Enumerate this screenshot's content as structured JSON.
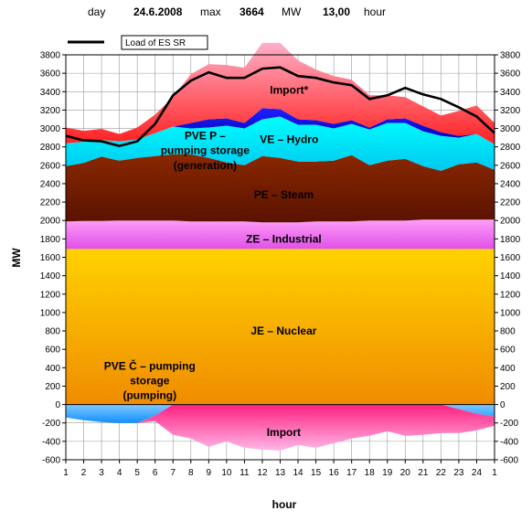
{
  "header": {
    "day_label": "day",
    "date": "24.6.2008",
    "max_label": "max",
    "max_value": "3664",
    "unit": "MW",
    "time": "13,00",
    "hour_label": "hour"
  },
  "chart_data": {
    "type": "area",
    "title": "",
    "xlabel": "hour",
    "ylabel": "MW",
    "ylim": [
      -600,
      3800
    ],
    "ytick_step": 200,
    "x": [
      1,
      2,
      3,
      4,
      5,
      6,
      7,
      8,
      9,
      10,
      11,
      12,
      13,
      14,
      15,
      16,
      17,
      18,
      19,
      20,
      21,
      22,
      23,
      24,
      25
    ],
    "x_tick_labels": [
      "1",
      "2",
      "3",
      "4",
      "5",
      "6",
      "7",
      "8",
      "9",
      "10",
      "11",
      "12",
      "13",
      "14",
      "15",
      "16",
      "17",
      "18",
      "19",
      "20",
      "21",
      "22",
      "23",
      "24",
      "1"
    ],
    "grid": true,
    "legend": {
      "position": "top-left",
      "entries": [
        "Load of ES SR"
      ]
    },
    "layers_positive": [
      {
        "name": "JE – Nuclear",
        "color_top": "#ffd200",
        "color_bottom": "#f08c00",
        "values": [
          1690,
          1690,
          1690,
          1690,
          1690,
          1690,
          1690,
          1690,
          1690,
          1690,
          1690,
          1690,
          1690,
          1690,
          1690,
          1690,
          1690,
          1690,
          1690,
          1690,
          1690,
          1690,
          1690,
          1690,
          1690
        ]
      },
      {
        "name": "ZE – Industrial",
        "color_top": "#ff9ef8",
        "color_bottom": "#e050e8",
        "values": [
          300,
          305,
          305,
          310,
          310,
          310,
          310,
          300,
          300,
          300,
          300,
          290,
          290,
          290,
          300,
          300,
          300,
          310,
          310,
          310,
          320,
          320,
          320,
          320,
          320
        ]
      },
      {
        "name": "PE – Steam",
        "color_top": "#8a2800",
        "color_bottom": "#5a1200",
        "values": [
          600,
          630,
          700,
          650,
          680,
          700,
          720,
          730,
          690,
          640,
          610,
          720,
          700,
          660,
          650,
          660,
          720,
          600,
          650,
          670,
          580,
          530,
          600,
          620,
          540
        ]
      },
      {
        "name": "VE – Hydro",
        "color_top": "#00ffff",
        "color_bottom": "#00c8f0",
        "values": [
          250,
          230,
          180,
          210,
          200,
          250,
          300,
          280,
          330,
          400,
          400,
          400,
          450,
          400,
          400,
          350,
          340,
          390,
          410,
          390,
          380,
          380,
          290,
          310,
          280
        ]
      },
      {
        "name": "PVE P – pumping storage (generation)",
        "color_top": "#2020ff",
        "color_bottom": "#0000b0",
        "values": [
          0,
          0,
          0,
          0,
          0,
          0,
          0,
          60,
          90,
          80,
          60,
          120,
          80,
          60,
          50,
          50,
          40,
          20,
          40,
          50,
          60,
          40,
          20,
          0,
          0
        ]
      },
      {
        "name": "Import*",
        "color_top": "#ffb0c8",
        "color_bottom": "#ff2020",
        "values": [
          170,
          120,
          120,
          80,
          130,
          200,
          320,
          530,
          600,
          580,
          600,
          710,
          720,
          640,
          550,
          520,
          440,
          350,
          260,
          230,
          210,
          180,
          270,
          310,
          230
        ]
      }
    ],
    "layers_negative": [
      {
        "name": "PVE Č – pumping storage (pumping)",
        "color_top": "#80c8ff",
        "color_bottom": "#1090ff",
        "values": [
          -140,
          -170,
          -190,
          -200,
          -200,
          -120,
          0,
          0,
          0,
          0,
          0,
          0,
          0,
          0,
          0,
          0,
          0,
          0,
          0,
          0,
          0,
          0,
          -50,
          -100,
          -130
        ]
      },
      {
        "name": "Import",
        "color_top": "#ff2080",
        "color_bottom": "#ffb8e8",
        "values": [
          0,
          0,
          0,
          0,
          0,
          -60,
          -330,
          -370,
          -460,
          -400,
          -470,
          -490,
          -500,
          -440,
          -470,
          -420,
          -370,
          -340,
          -290,
          -340,
          -330,
          -310,
          -260,
          -180,
          -100
        ]
      }
    ],
    "load": {
      "name": "Load of ES SR",
      "color": "#000000",
      "values": [
        2920,
        2870,
        2860,
        2810,
        2860,
        3050,
        3360,
        3520,
        3610,
        3550,
        3550,
        3650,
        3664,
        3570,
        3550,
        3500,
        3470,
        3320,
        3360,
        3440,
        3370,
        3320,
        3230,
        3130,
        2950
      ]
    }
  },
  "area_labels": [
    {
      "text": "Import*",
      "x": 13.5,
      "y": 3420
    },
    {
      "text": "VE – Hydro",
      "x": 13.5,
      "y": 2880
    },
    {
      "text": "PVE P –",
      "x": 8.8,
      "y": 2920
    },
    {
      "text": "pumping storage",
      "x": 8.8,
      "y": 2760
    },
    {
      "text": "(generation)",
      "x": 8.8,
      "y": 2600
    },
    {
      "text": "PE – Steam",
      "x": 13.2,
      "y": 2280
    },
    {
      "text": "ZE – Industrial",
      "x": 13.2,
      "y": 1800
    },
    {
      "text": "JE – Nuclear",
      "x": 13.2,
      "y": 800
    },
    {
      "text": "PVE Č – pumping",
      "x": 5.7,
      "y": 420
    },
    {
      "text": "storage",
      "x": 5.7,
      "y": 260
    },
    {
      "text": "(pumping)",
      "x": 5.7,
      "y": 100
    },
    {
      "text": "Import",
      "x": 13.2,
      "y": -300
    }
  ]
}
